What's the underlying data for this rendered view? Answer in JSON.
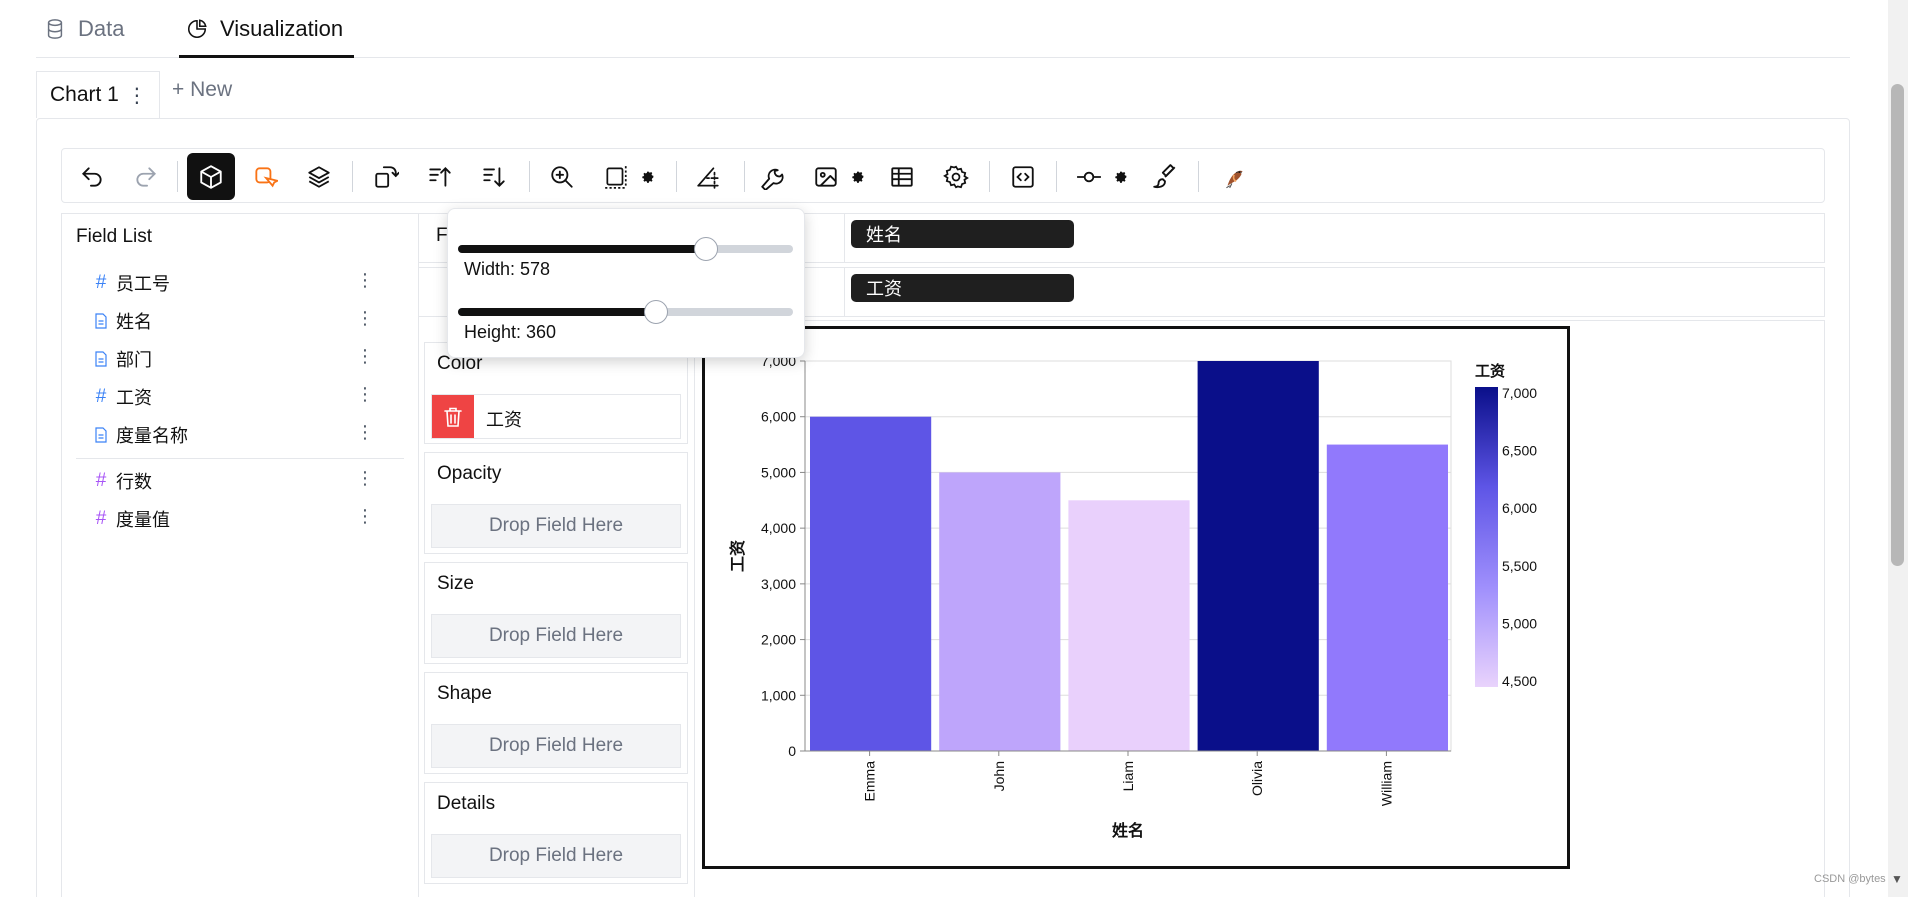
{
  "tabs": [
    {
      "label": "Data",
      "icon": "database-icon"
    },
    {
      "label": "Visualization",
      "icon": "pie-chart-icon"
    }
  ],
  "chart_tabs": {
    "active": "Chart 1",
    "menu": "⋮",
    "new": "+ New"
  },
  "field_list": {
    "title": "Field List",
    "dimensions": [
      {
        "name": "员工号",
        "type": "#"
      },
      {
        "name": "姓名",
        "type": "doc"
      },
      {
        "name": "部门",
        "type": "doc"
      },
      {
        "name": "工资",
        "type": "#"
      },
      {
        "name": "度量名称",
        "type": "doc"
      }
    ],
    "measures": [
      {
        "name": "行数",
        "type": "#"
      },
      {
        "name": "度量值",
        "type": "#"
      }
    ],
    "menu": "⋮"
  },
  "shelves": {
    "row_label_partial": "F",
    "x_field": "姓名",
    "y_field": "工资"
  },
  "encodings": {
    "color": {
      "label": "Color",
      "field": "工资"
    },
    "opacity": {
      "label": "Opacity",
      "placeholder": "Drop Field Here"
    },
    "size": {
      "label": "Size",
      "placeholder": "Drop Field Here"
    },
    "shape": {
      "label": "Shape",
      "placeholder": "Drop Field Here"
    },
    "details": {
      "label": "Details",
      "placeholder": "Drop Field Here"
    }
  },
  "size_popover": {
    "width_label": "Width: 578",
    "height_label": "Height: 360",
    "width_value": 578,
    "height_value": 360,
    "width_fraction": 0.74,
    "height_fraction": 0.59
  },
  "chart_data": {
    "type": "bar",
    "categories": [
      "Emma",
      "John",
      "Liam",
      "Olivia",
      "William"
    ],
    "values": [
      6000,
      5000,
      4500,
      7000,
      5500
    ],
    "xlabel": "姓名",
    "ylabel": "工资",
    "ylim": [
      0,
      7000
    ],
    "yticks": [
      "0",
      "1,000",
      "2,000",
      "3,000",
      "4,000",
      "5,000",
      "6,000",
      "7,000"
    ],
    "grid": true,
    "legend": {
      "title": "工资",
      "ticks": [
        "7,000",
        "6,500",
        "6,000",
        "5,500",
        "5,000",
        "4,500"
      ],
      "placement": "right",
      "colors": [
        "#0a0f8a",
        "#5e55e6",
        "#9f8ffc",
        "#e9d3fc"
      ]
    },
    "bar_colors": [
      "#5e55e6",
      "#bea5fb",
      "#e9d0fc",
      "#0a0f8a",
      "#9179fc"
    ]
  },
  "watermark": "CSDN @bytes"
}
